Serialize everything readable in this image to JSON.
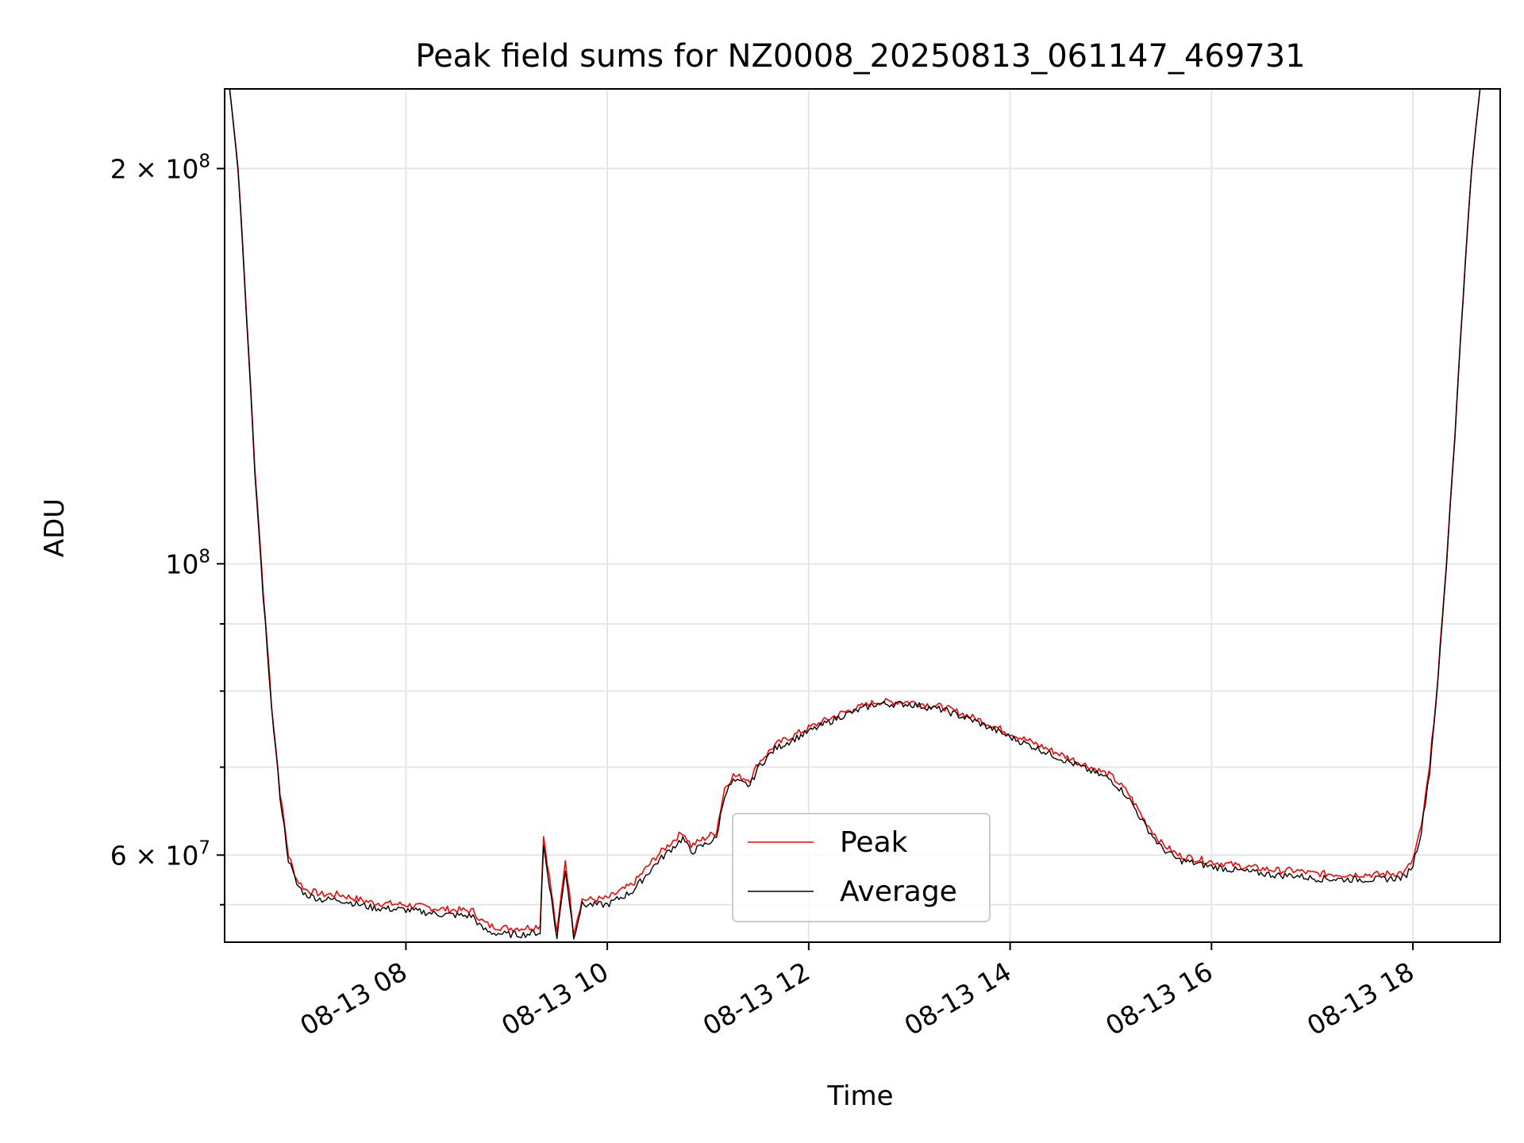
{
  "chart_data": {
    "type": "line",
    "title": "Peak field sums for NZ0008_20250813_061147_469731",
    "xlabel": "Time",
    "ylabel": "ADU",
    "xlim": [
      "2025-08-13 06:12",
      "2025-08-13 18:52"
    ],
    "ylim": [
      51500000,
      230000000
    ],
    "yscale": "log",
    "x_ticks": [
      "08-13 08",
      "08-13 10",
      "08-13 12",
      "08-13 14",
      "08-13 16",
      "08-13 18"
    ],
    "y_ticks": [
      "2 × 10^8",
      "10^8",
      "6 × 10^7"
    ],
    "grid": true,
    "legend_position": "lower-center",
    "series": [
      {
        "name": "Peak",
        "color": "#ff0000",
        "x": [
          "2025-08-13 06:12",
          "2025-08-13 06:15",
          "2025-08-13 06:20",
          "2025-08-13 06:25",
          "2025-08-13 06:30",
          "2025-08-13 06:35",
          "2025-08-13 06:40",
          "2025-08-13 06:45",
          "2025-08-13 06:50",
          "2025-08-13 06:55",
          "2025-08-13 07:00",
          "2025-08-13 07:10",
          "2025-08-13 07:20",
          "2025-08-13 07:40",
          "2025-08-13 08:00",
          "2025-08-13 08:20",
          "2025-08-13 08:40",
          "2025-08-13 08:45",
          "2025-08-13 08:50",
          "2025-08-13 09:00",
          "2025-08-13 09:10",
          "2025-08-13 09:20",
          "2025-08-13 09:22",
          "2025-08-13 09:30",
          "2025-08-13 09:35",
          "2025-08-13 09:40",
          "2025-08-13 09:45",
          "2025-08-13 09:50",
          "2025-08-13 10:00",
          "2025-08-13 10:15",
          "2025-08-13 10:30",
          "2025-08-13 10:45",
          "2025-08-13 10:50",
          "2025-08-13 11:05",
          "2025-08-13 11:10",
          "2025-08-13 11:15",
          "2025-08-13 11:25",
          "2025-08-13 11:30",
          "2025-08-13 11:40",
          "2025-08-13 12:00",
          "2025-08-13 12:20",
          "2025-08-13 12:40",
          "2025-08-13 13:00",
          "2025-08-13 13:20",
          "2025-08-13 13:40",
          "2025-08-13 14:00",
          "2025-08-13 14:20",
          "2025-08-13 14:40",
          "2025-08-13 15:00",
          "2025-08-13 15:10",
          "2025-08-13 15:20",
          "2025-08-13 15:30",
          "2025-08-13 15:40",
          "2025-08-13 16:00",
          "2025-08-13 16:20",
          "2025-08-13 16:40",
          "2025-08-13 16:50",
          "2025-08-13 17:00",
          "2025-08-13 17:20",
          "2025-08-13 17:40",
          "2025-08-13 17:55",
          "2025-08-13 18:00",
          "2025-08-13 18:05",
          "2025-08-13 18:10",
          "2025-08-13 18:15",
          "2025-08-13 18:20",
          "2025-08-13 18:25",
          "2025-08-13 18:30",
          "2025-08-13 18:35",
          "2025-08-13 18:40",
          "2025-08-13 18:52"
        ],
        "values": [
          230000000,
          230000000,
          200000000,
          155000000,
          118000000,
          95000000,
          78000000,
          67000000,
          60000000,
          57500000,
          56500000,
          56000000,
          56000000,
          55200000,
          55000000,
          54600000,
          54400000,
          53500000,
          53000000,
          52800000,
          52800000,
          53000000,
          62000000,
          52200000,
          59500000,
          52400000,
          55500000,
          55500000,
          55600000,
          57000000,
          60000000,
          62500000,
          61000000,
          62500000,
          67500000,
          69000000,
          68500000,
          70500000,
          72800000,
          75000000,
          77000000,
          78500000,
          78500000,
          77800000,
          76200000,
          74300000,
          72500000,
          70700000,
          69000000,
          67000000,
          63800000,
          61300000,
          60000000,
          59300000,
          58800000,
          58400000,
          58400000,
          58100000,
          58000000,
          58000000,
          58200000,
          59500000,
          63000000,
          70000000,
          82000000,
          100000000,
          125000000,
          160000000,
          200000000,
          230000000,
          230000000
        ]
      },
      {
        "name": "Average",
        "color": "#000000",
        "x": [
          "2025-08-13 06:12",
          "2025-08-13 06:15",
          "2025-08-13 06:20",
          "2025-08-13 06:25",
          "2025-08-13 06:30",
          "2025-08-13 06:35",
          "2025-08-13 06:40",
          "2025-08-13 06:45",
          "2025-08-13 06:50",
          "2025-08-13 06:55",
          "2025-08-13 07:00",
          "2025-08-13 07:10",
          "2025-08-13 07:20",
          "2025-08-13 07:40",
          "2025-08-13 08:00",
          "2025-08-13 08:20",
          "2025-08-13 08:40",
          "2025-08-13 08:45",
          "2025-08-13 08:50",
          "2025-08-13 09:00",
          "2025-08-13 09:10",
          "2025-08-13 09:20",
          "2025-08-13 09:22",
          "2025-08-13 09:30",
          "2025-08-13 09:35",
          "2025-08-13 09:40",
          "2025-08-13 09:45",
          "2025-08-13 09:50",
          "2025-08-13 10:00",
          "2025-08-13 10:15",
          "2025-08-13 10:30",
          "2025-08-13 10:45",
          "2025-08-13 10:50",
          "2025-08-13 11:05",
          "2025-08-13 11:10",
          "2025-08-13 11:15",
          "2025-08-13 11:25",
          "2025-08-13 11:30",
          "2025-08-13 11:40",
          "2025-08-13 12:00",
          "2025-08-13 12:20",
          "2025-08-13 12:40",
          "2025-08-13 13:00",
          "2025-08-13 13:20",
          "2025-08-13 13:40",
          "2025-08-13 14:00",
          "2025-08-13 14:20",
          "2025-08-13 14:40",
          "2025-08-13 15:00",
          "2025-08-13 15:10",
          "2025-08-13 15:20",
          "2025-08-13 15:30",
          "2025-08-13 15:40",
          "2025-08-13 16:00",
          "2025-08-13 16:20",
          "2025-08-13 16:40",
          "2025-08-13 16:50",
          "2025-08-13 17:00",
          "2025-08-13 17:20",
          "2025-08-13 17:40",
          "2025-08-13 17:55",
          "2025-08-13 18:00",
          "2025-08-13 18:05",
          "2025-08-13 18:10",
          "2025-08-13 18:15",
          "2025-08-13 18:20",
          "2025-08-13 18:25",
          "2025-08-13 18:30",
          "2025-08-13 18:35",
          "2025-08-13 18:40",
          "2025-08-13 18:52"
        ],
        "values": [
          230000000,
          230000000,
          199000000,
          154000000,
          117000000,
          94000000,
          77500000,
          66500000,
          59500000,
          57000000,
          56000000,
          55500000,
          55500000,
          54700000,
          54500000,
          54100000,
          53900000,
          52800000,
          52400000,
          52200000,
          52200000,
          52400000,
          61000000,
          51800000,
          58500000,
          52000000,
          55000000,
          55000000,
          55000000,
          56300000,
          59300000,
          61800000,
          60300000,
          61800000,
          66800000,
          68300000,
          67800000,
          70000000,
          72300000,
          74500000,
          76600000,
          78200000,
          78200000,
          77400000,
          75800000,
          73800000,
          72000000,
          70200000,
          68500000,
          66500000,
          63300000,
          60800000,
          59500000,
          58800000,
          58300000,
          57900000,
          57900000,
          57600000,
          57500000,
          57500000,
          57700000,
          59000000,
          62500000,
          69500000,
          81500000,
          99500000,
          124500000,
          159500000,
          199500000,
          230000000,
          230000000
        ]
      }
    ]
  }
}
